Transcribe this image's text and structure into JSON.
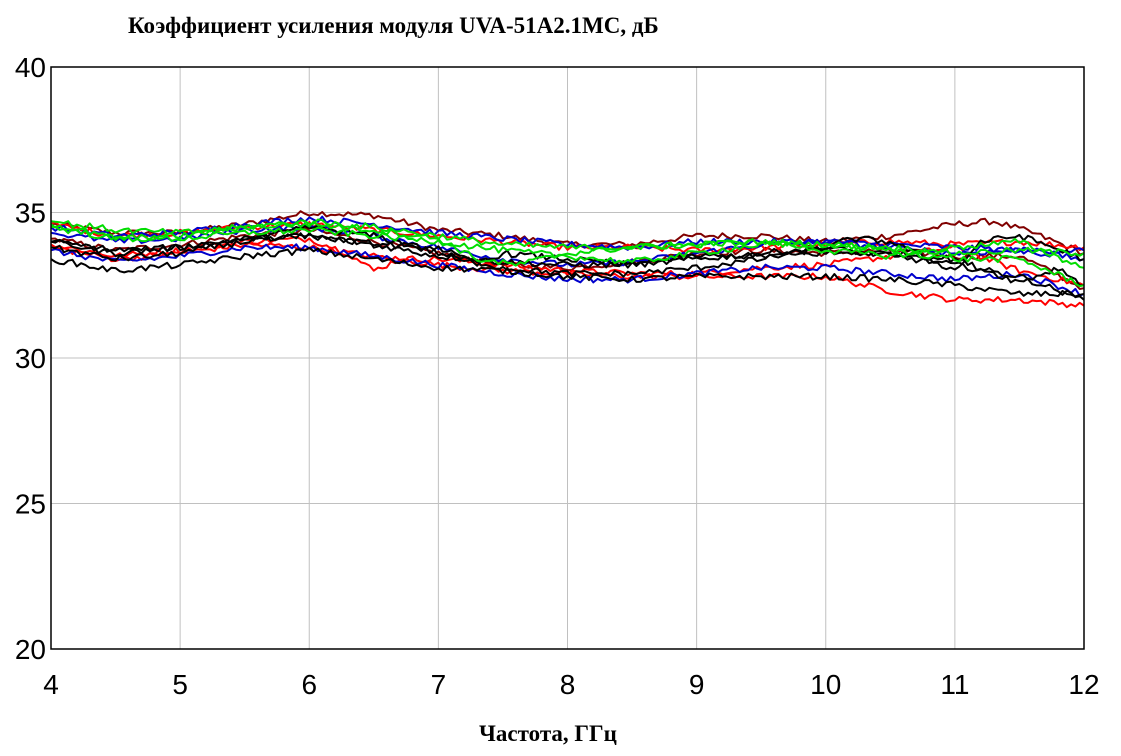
{
  "chart_data": {
    "type": "line",
    "title": "Коэффициент усиления модуля UVA-51A2.1MC, дБ",
    "xlabel": "Частота, ГГц",
    "ylabel": "",
    "xlim": [
      4,
      12
    ],
    "ylim": [
      20,
      40
    ],
    "xticks": [
      "4",
      "5",
      "6",
      "7",
      "8",
      "9",
      "10",
      "11",
      "12"
    ],
    "yticks": [
      "20",
      "25",
      "30",
      "35",
      "40"
    ],
    "grid": true,
    "legend": "none",
    "series": [
      {
        "color": "#800000",
        "x": [
          4,
          4.5,
          5,
          5.5,
          6,
          6.5,
          7,
          7.5,
          8,
          8.5,
          9,
          9.5,
          10,
          10.5,
          11,
          11.3,
          11.6,
          12
        ],
        "values": [
          34.6,
          34.3,
          34.3,
          34.6,
          35.0,
          34.9,
          34.4,
          34.2,
          33.9,
          33.9,
          34.2,
          34.2,
          34.0,
          34.2,
          34.6,
          34.7,
          34.3,
          33.6
        ]
      },
      {
        "color": "#800000",
        "x": [
          4,
          4.5,
          5,
          5.5,
          6,
          6.5,
          7,
          7.5,
          8,
          8.5,
          9,
          9.5,
          10,
          10.5,
          11,
          11.5,
          12
        ],
        "values": [
          34.1,
          33.7,
          33.9,
          34.2,
          34.4,
          34.0,
          33.6,
          33.2,
          33.1,
          33.3,
          33.6,
          33.7,
          33.6,
          33.7,
          33.5,
          33.5,
          32.4
        ]
      },
      {
        "color": "#ff0000",
        "x": [
          4,
          4.5,
          5,
          5.5,
          6,
          6.5,
          7,
          7.5,
          8,
          8.5,
          9,
          9.5,
          10,
          10.5,
          11,
          11.5,
          12
        ],
        "values": [
          34.6,
          34.2,
          34.3,
          34.5,
          34.6,
          34.4,
          34.2,
          34.0,
          33.8,
          33.8,
          33.7,
          33.8,
          33.9,
          34.0,
          33.9,
          34.0,
          33.8
        ]
      },
      {
        "color": "#ff0000",
        "x": [
          4,
          4.5,
          5,
          5.5,
          6,
          6.3,
          6.5,
          6.7,
          7,
          7.5,
          8,
          8.5,
          9,
          9.5,
          10,
          10.5,
          11,
          11.5,
          12
        ],
        "values": [
          33.9,
          33.5,
          33.7,
          34.0,
          34.1,
          33.6,
          33.0,
          33.4,
          33.4,
          33.2,
          33.0,
          32.9,
          32.9,
          33.1,
          33.2,
          33.5,
          33.8,
          33.0,
          32.5
        ]
      },
      {
        "color": "#ff0000",
        "x": [
          4,
          4.5,
          5,
          5.5,
          6,
          6.5,
          7,
          7.5,
          8,
          8.5,
          9,
          9.5,
          10,
          10.5,
          11,
          11.5,
          12
        ],
        "values": [
          33.8,
          33.4,
          33.6,
          33.9,
          33.8,
          33.5,
          33.2,
          33.0,
          32.9,
          32.8,
          32.8,
          32.8,
          32.8,
          32.3,
          32.0,
          32.0,
          31.8
        ]
      },
      {
        "color": "#0000cc",
        "x": [
          4,
          4.5,
          5,
          5.5,
          6,
          6.5,
          7,
          7.5,
          8,
          8.5,
          9,
          9.5,
          10,
          10.5,
          11,
          11.5,
          12
        ],
        "values": [
          34.5,
          34.2,
          34.3,
          34.6,
          34.8,
          34.6,
          34.3,
          34.1,
          33.9,
          33.8,
          34.0,
          34.0,
          34.0,
          33.9,
          33.8,
          33.7,
          33.7
        ]
      },
      {
        "color": "#0000cc",
        "x": [
          4,
          4.5,
          5,
          5.5,
          6,
          6.5,
          7,
          7.5,
          8,
          8.5,
          9,
          9.5,
          10,
          10.5,
          11,
          11.5,
          12
        ],
        "values": [
          33.7,
          33.3,
          33.5,
          33.8,
          33.8,
          33.5,
          33.2,
          32.9,
          32.7,
          32.7,
          32.9,
          33.1,
          33.1,
          32.9,
          32.7,
          32.9,
          32.2
        ]
      },
      {
        "color": "#0000cc",
        "x": [
          4,
          4.5,
          5,
          5.5,
          6,
          6.5,
          7,
          7.5,
          8,
          8.5,
          9,
          9.5,
          10,
          10.5,
          11,
          11.5,
          12
        ],
        "values": [
          34.3,
          34.0,
          34.1,
          34.4,
          34.5,
          34.2,
          33.8,
          33.4,
          33.2,
          33.3,
          33.6,
          33.9,
          34.0,
          33.8,
          33.6,
          33.7,
          33.4
        ]
      },
      {
        "color": "#000000",
        "x": [
          4,
          4.5,
          5,
          5.5,
          6,
          6.5,
          7,
          7.5,
          8,
          8.5,
          9,
          9.5,
          10,
          10.5,
          11,
          11.5,
          12
        ],
        "values": [
          34.0,
          33.6,
          33.8,
          34.1,
          34.2,
          33.9,
          33.5,
          33.3,
          33.2,
          33.2,
          33.4,
          33.6,
          33.8,
          33.5,
          33.2,
          32.8,
          32.0
        ]
      },
      {
        "color": "#000000",
        "x": [
          4,
          4.5,
          5,
          5.5,
          6,
          6.5,
          7,
          7.5,
          8,
          8.5,
          9,
          9.5,
          10,
          10.5,
          11,
          11.5,
          12
        ],
        "values": [
          33.4,
          33.0,
          33.2,
          33.5,
          33.7,
          33.4,
          33.1,
          33.0,
          32.8,
          32.7,
          32.8,
          32.8,
          32.8,
          32.7,
          32.5,
          32.2,
          32.2
        ]
      },
      {
        "color": "#000000",
        "x": [
          4,
          4.5,
          5,
          5.5,
          6,
          6.5,
          7,
          7.5,
          8,
          8.5,
          9,
          9.5,
          10,
          10.2,
          10.5,
          11,
          11.2,
          11.5,
          11.7,
          12
        ],
        "values": [
          33.8,
          33.4,
          33.6,
          34.0,
          34.5,
          34.2,
          33.6,
          33.1,
          32.9,
          32.9,
          33.1,
          33.4,
          33.8,
          34.1,
          34.0,
          33.0,
          34.0,
          34.2,
          33.9,
          33.4
        ]
      },
      {
        "color": "#000000",
        "x": [
          4,
          4.5,
          5,
          5.5,
          6,
          6.5,
          7,
          7.3,
          7.5,
          8,
          8.5,
          9,
          9.5,
          10,
          10.5,
          11,
          11.5,
          11.8,
          12
        ],
        "values": [
          34.0,
          33.7,
          33.8,
          34.1,
          34.2,
          33.9,
          33.8,
          33.2,
          33.6,
          33.4,
          33.2,
          33.5,
          33.5,
          33.6,
          33.6,
          33.4,
          32.6,
          33.1,
          32.5
        ]
      },
      {
        "color": "#00dd00",
        "x": [
          4,
          4.5,
          5,
          5.5,
          6,
          6.5,
          7,
          7.5,
          8,
          8.5,
          9,
          9.5,
          10,
          10.5,
          11,
          11.5,
          12
        ],
        "values": [
          34.7,
          34.4,
          34.3,
          34.5,
          34.7,
          34.5,
          34.2,
          33.9,
          33.8,
          33.8,
          33.9,
          34.0,
          33.9,
          33.8,
          33.6,
          33.7,
          33.6
        ]
      },
      {
        "color": "#00dd00",
        "x": [
          4,
          4.5,
          5,
          5.5,
          6,
          6.5,
          7,
          7.3,
          7.6,
          8,
          8.5,
          9,
          9.5,
          10,
          10.5,
          11,
          11.5,
          12
        ],
        "values": [
          34.6,
          34.1,
          34.2,
          34.5,
          34.6,
          34.4,
          34.1,
          33.4,
          33.2,
          33.6,
          33.8,
          33.9,
          34.0,
          33.7,
          33.5,
          33.8,
          34.0,
          33.1
        ]
      },
      {
        "color": "#00dd00",
        "x": [
          4,
          4.5,
          5,
          5.5,
          6,
          6.5,
          7,
          7.5,
          8,
          8.5,
          9,
          9.5,
          10,
          10.5,
          11,
          11.5,
          12
        ],
        "values": [
          34.5,
          34.1,
          34.1,
          34.3,
          34.4,
          34.2,
          34.0,
          33.7,
          33.5,
          33.3,
          33.6,
          33.9,
          33.9,
          33.7,
          33.4,
          33.4,
          32.5
        ]
      }
    ]
  }
}
